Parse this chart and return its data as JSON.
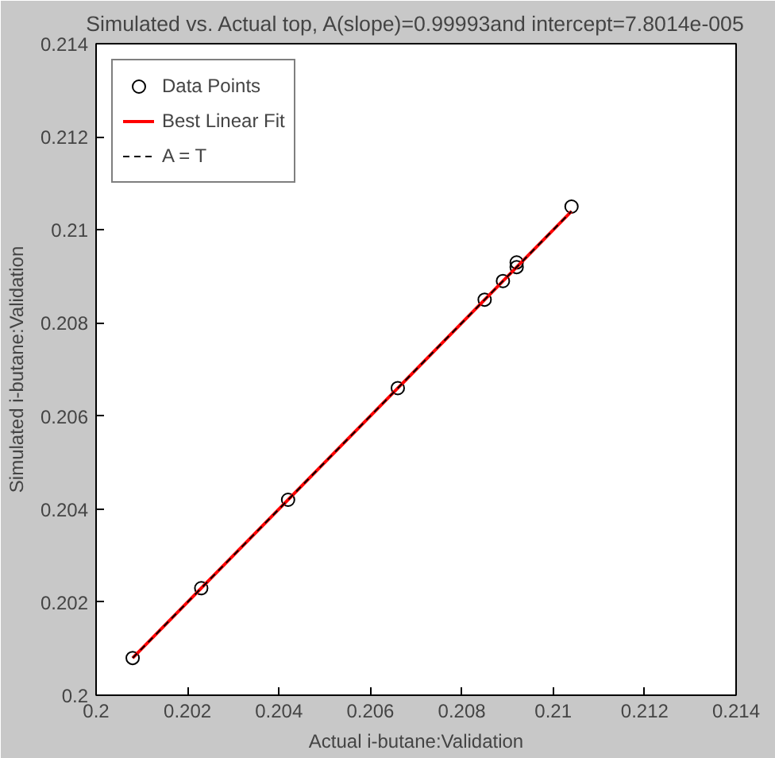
{
  "chart_data": {
    "type": "scatter",
    "title": "Simulated vs. Actual top, A(slope)=0.99993and intercept=7.8014e-005",
    "xlabel": "Actual i-butane:Validation",
    "ylabel": "Simulated i-butane:Validation",
    "xlim": [
      0.2,
      0.214
    ],
    "ylim": [
      0.2,
      0.214
    ],
    "xticks": [
      0.2,
      0.202,
      0.204,
      0.206,
      0.208,
      0.21,
      0.212,
      0.214
    ],
    "yticks": [
      0.2,
      0.202,
      0.204,
      0.206,
      0.208,
      0.21,
      0.212,
      0.214
    ],
    "grid": false,
    "legend": "top left",
    "series": [
      {
        "name": "Data Points",
        "marker": "circle",
        "color": "#000000",
        "x": [
          0.2008,
          0.2023,
          0.2042,
          0.2066,
          0.2085,
          0.2089,
          0.2092,
          0.2092,
          0.2104
        ],
        "values": [
          0.2008,
          0.2023,
          0.2042,
          0.2066,
          0.2085,
          0.2089,
          0.2092,
          0.2093,
          0.2105
        ]
      },
      {
        "name": "Best Linear Fit",
        "type": "line",
        "line_style": "solid",
        "color": "#ff0000",
        "x": [
          0.2008,
          0.2104
        ],
        "values": [
          0.2008,
          0.2104
        ]
      },
      {
        "name": "A = T",
        "type": "line",
        "line_style": "dashed",
        "color": "#000000",
        "x": [
          0.2008,
          0.2104
        ],
        "values": [
          0.2008,
          0.2104
        ]
      }
    ]
  }
}
